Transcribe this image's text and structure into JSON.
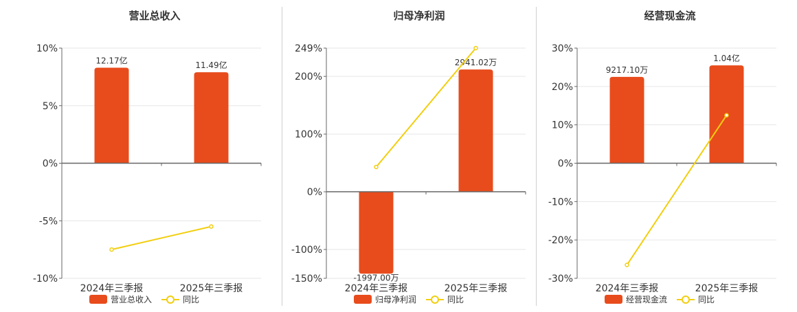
{
  "colors": {
    "bar": "#E84C1C",
    "line": "#F2CE0E",
    "axis": "#666666",
    "grid": "#e6e6e6",
    "text": "#333333"
  },
  "legend": {
    "bar_label": "",
    "line_label": "同比"
  },
  "chart_data": [
    {
      "type": "bar",
      "title": "营业总收入",
      "categories": [
        "2024年三季报",
        "2025年三季报"
      ],
      "y_ticks": [
        "10%",
        "5%",
        "0%",
        "-5%",
        "-10%"
      ],
      "ylim": [
        -10,
        10
      ],
      "bar_values": [
        8.3,
        7.9
      ],
      "bar_labels": [
        "12.17亿",
        "11.49亿"
      ],
      "line_values": [
        -7.5,
        -5.5
      ],
      "series": [
        {
          "name": "营业总收入"
        },
        {
          "name": "同比"
        }
      ]
    },
    {
      "type": "bar",
      "title": "归母净利润",
      "categories": [
        "2024年三季报",
        "2025年三季报"
      ],
      "y_ticks": [
        "249%",
        "200%",
        "100%",
        "0%",
        "-100%",
        "-150%"
      ],
      "ylim": [
        -150,
        249
      ],
      "bar_values": [
        -142,
        212
      ],
      "bar_labels": [
        "-1997.00万",
        "2941.02万"
      ],
      "line_values": [
        43,
        249
      ],
      "series": [
        {
          "name": "归母净利润"
        },
        {
          "name": "同比"
        }
      ]
    },
    {
      "type": "bar",
      "title": "经营现金流",
      "categories": [
        "2024年三季报",
        "2025年三季报"
      ],
      "y_ticks": [
        "30%",
        "20%",
        "10%",
        "0%",
        "-10%",
        "-20%",
        "-30%"
      ],
      "ylim": [
        -30,
        30
      ],
      "bar_values": [
        22.5,
        25.5
      ],
      "bar_labels": [
        "9217.10万",
        "1.04亿"
      ],
      "line_values": [
        -26.5,
        12.5
      ],
      "series": [
        {
          "name": "经营现金流"
        },
        {
          "name": "同比"
        }
      ]
    }
  ]
}
